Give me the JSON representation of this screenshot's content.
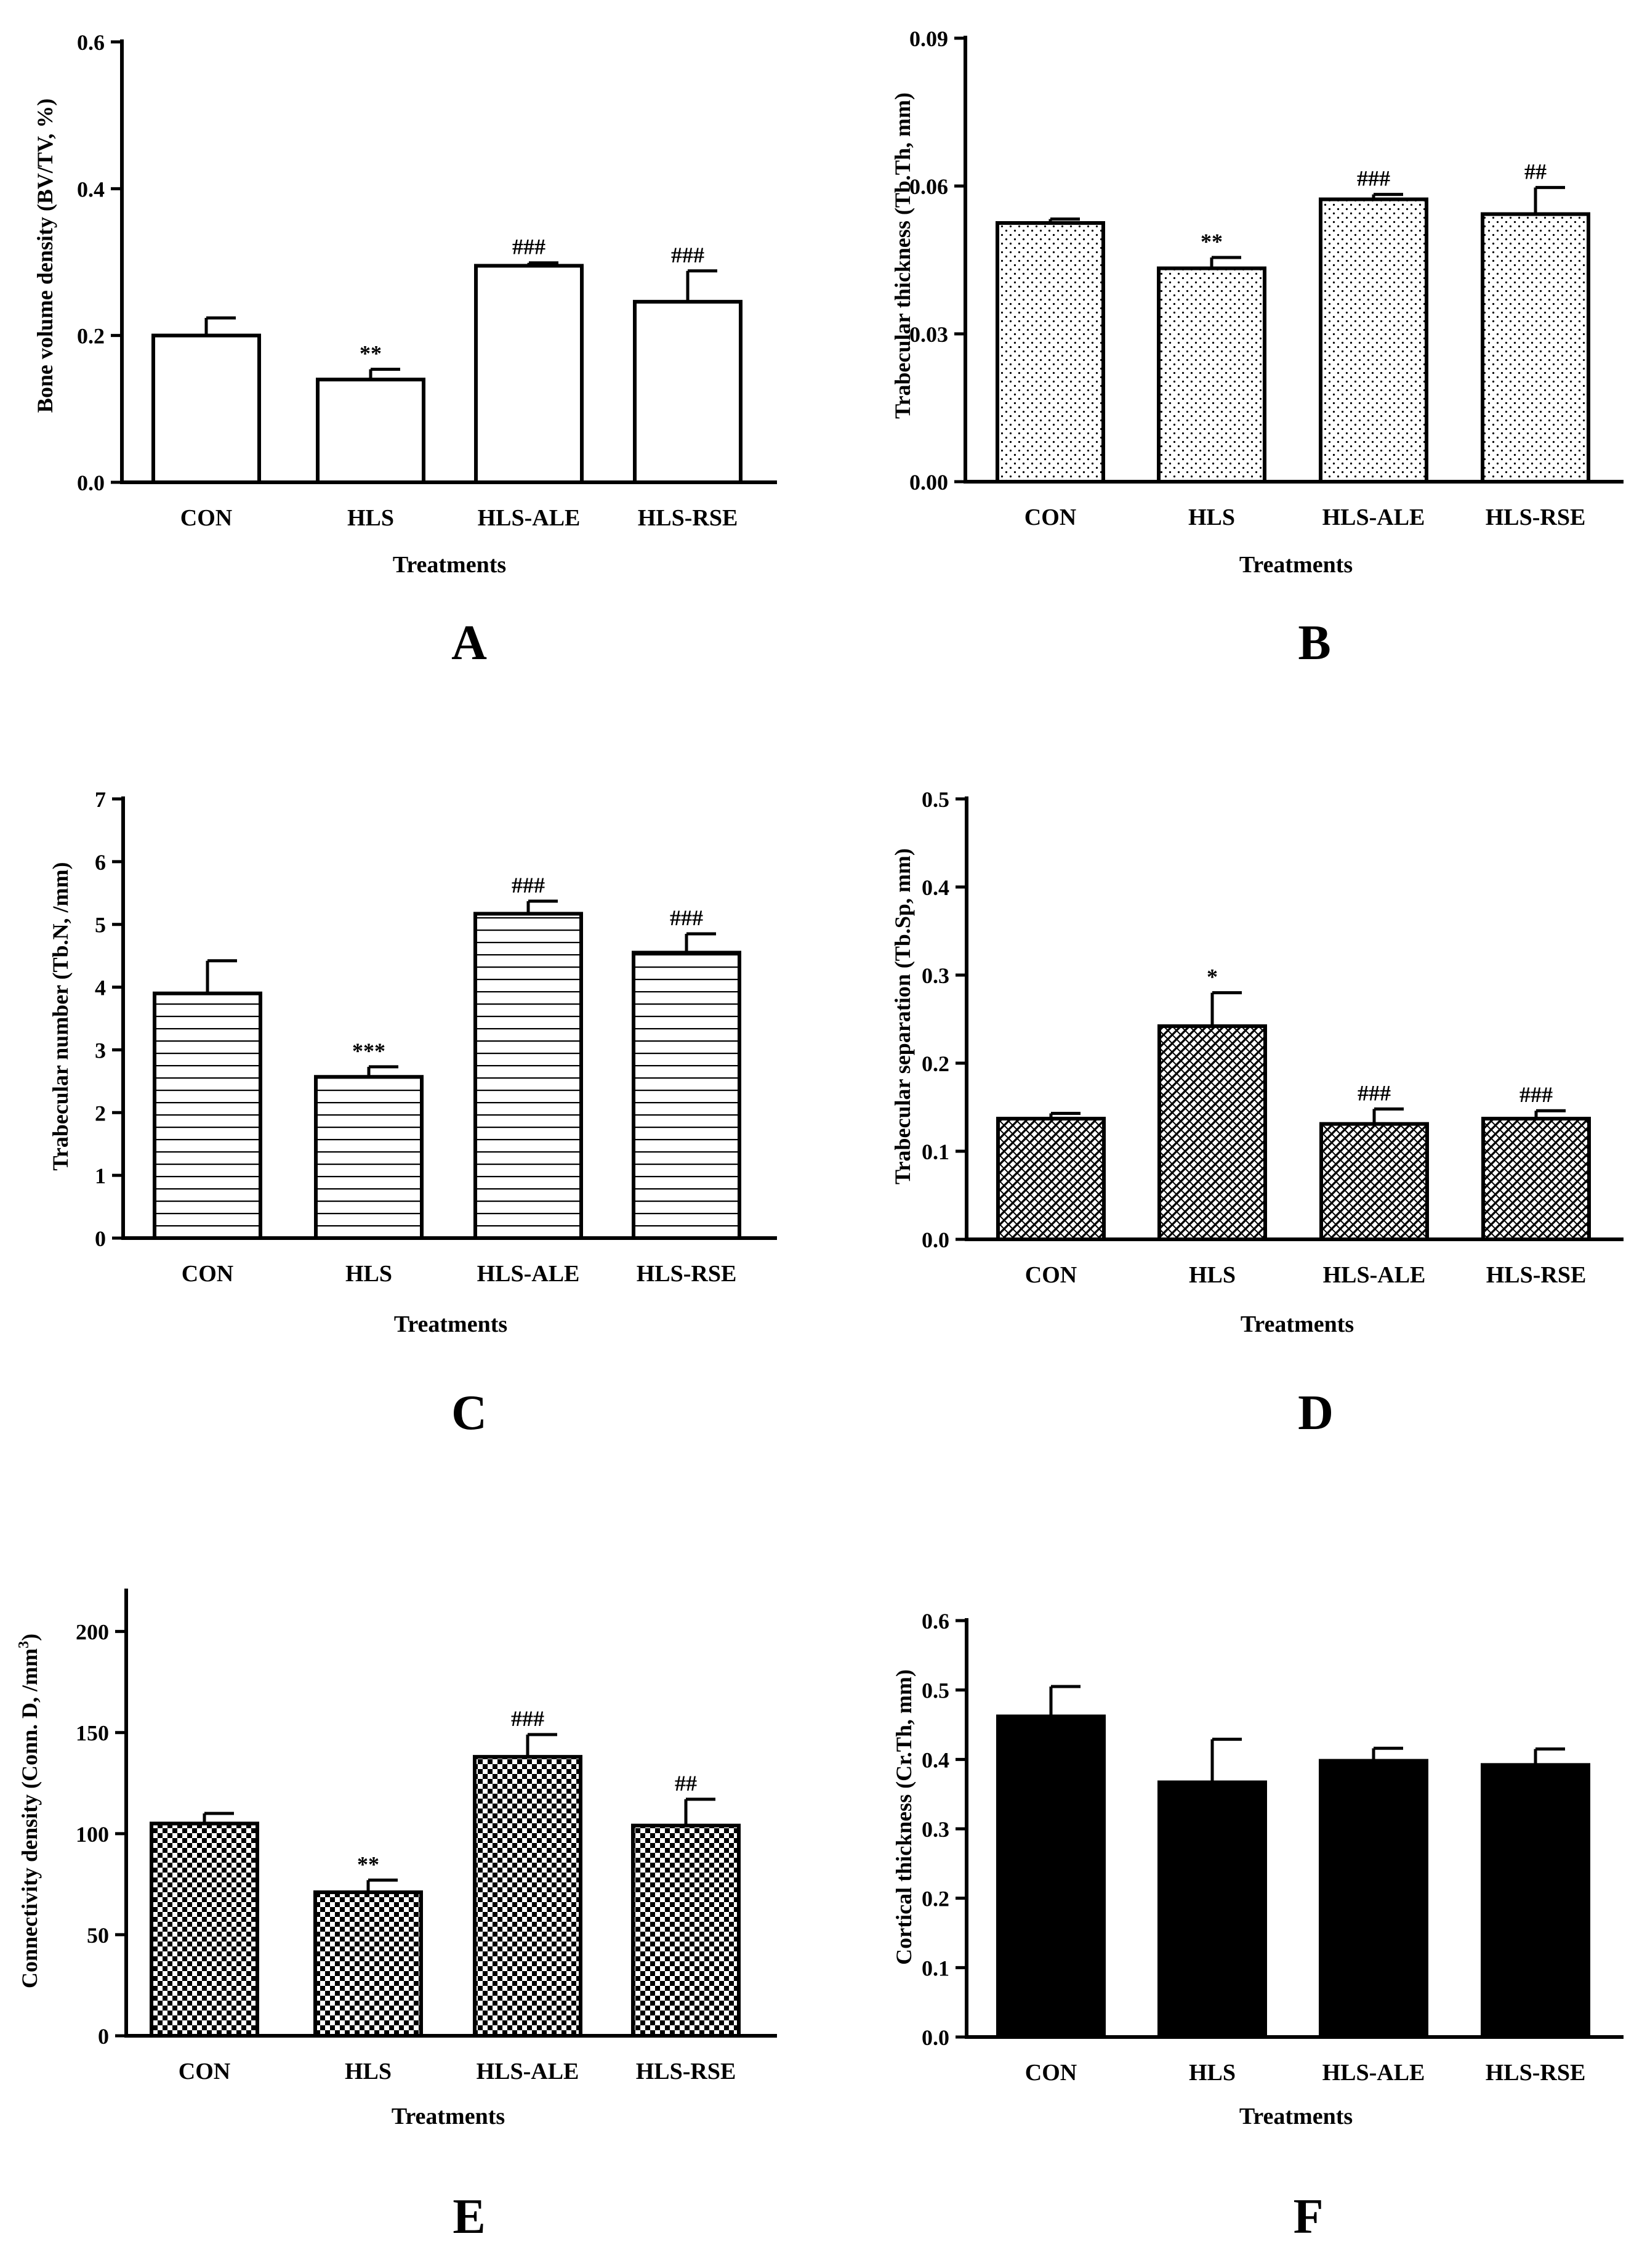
{
  "figure": {
    "panels": [
      {
        "panel_label": "A",
        "ylabel": "Bone volume density (BV/TV, %)",
        "xlabel": "Treatments",
        "ytick_labels": [
          "0.0",
          "0.2",
          "0.4",
          "0.6"
        ]
      },
      {
        "panel_label": "B",
        "ylabel": "Trabecular thickness (Tb.Th, mm)",
        "xlabel": "Treatments",
        "ytick_labels": [
          "0.00",
          "0.03",
          "0.06",
          "0.09"
        ]
      },
      {
        "panel_label": "C",
        "ylabel": "Trabecular number (Tb.N, /mm)",
        "xlabel": "Treatments",
        "ytick_labels": [
          "0",
          "1",
          "2",
          "3",
          "4",
          "5",
          "6",
          "7"
        ]
      },
      {
        "panel_label": "D",
        "ylabel": "Trabecular separation (Tb.Sp, mm)",
        "xlabel": "Treatments",
        "ytick_labels": [
          "0.0",
          "0.1",
          "0.2",
          "0.3",
          "0.4",
          "0.5"
        ]
      },
      {
        "panel_label": "E",
        "ylabel": "Connectivity density (Conn. D, /mm",
        "ylabel_superscript": "3",
        "ylabel_close": ")",
        "xlabel": "Treatments",
        "ytick_labels": [
          "0",
          "50",
          "100",
          "150",
          "200"
        ]
      },
      {
        "panel_label": "F",
        "ylabel": "Cortical thickness (Cr.Th, mm)",
        "xlabel": "Treatments",
        "ytick_labels": [
          "0.0",
          "0.1",
          "0.2",
          "0.3",
          "0.4",
          "0.5",
          "0.6"
        ]
      }
    ]
  },
  "chart_data": [
    {
      "type": "bar",
      "panel": "A",
      "fill": "white",
      "categories": [
        "CON",
        "HLS",
        "HLS-ALE",
        "HLS-RSE"
      ],
      "values": [
        0.2,
        0.14,
        0.295,
        0.246
      ],
      "errors": [
        0.024,
        0.014,
        0.004,
        0.042
      ],
      "annotations": [
        "",
        "**",
        "###",
        "###"
      ],
      "ylim": [
        0,
        0.6
      ],
      "yticks": [
        0,
        0.2,
        0.4,
        0.6
      ],
      "xlabel": "Treatments",
      "ylabel": "Bone volume density (BV/TV, %)"
    },
    {
      "type": "bar",
      "panel": "B",
      "fill": "dots",
      "categories": [
        "CON",
        "HLS",
        "HLS-ALE",
        "HLS-RSE"
      ],
      "values": [
        0.0525,
        0.0433,
        0.0573,
        0.0543
      ],
      "errors": [
        0.0008,
        0.0022,
        0.001,
        0.0054
      ],
      "annotations": [
        "",
        "**",
        "###",
        "##"
      ],
      "ylim": [
        0,
        0.09
      ],
      "yticks": [
        0,
        0.03,
        0.06,
        0.09
      ],
      "xlabel": "Treatments",
      "ylabel": "Trabecular thickness (Tb.Th, mm)"
    },
    {
      "type": "bar",
      "panel": "C",
      "fill": "horizontal-lines",
      "categories": [
        "CON",
        "HLS",
        "HLS-ALE",
        "HLS-RSE"
      ],
      "values": [
        3.9,
        2.57,
        5.17,
        4.55
      ],
      "errors": [
        0.52,
        0.16,
        0.2,
        0.3
      ],
      "annotations": [
        "",
        "***",
        "###",
        "###"
      ],
      "ylim": [
        0,
        7
      ],
      "yticks": [
        0,
        1,
        2,
        3,
        4,
        5,
        6,
        7
      ],
      "xlabel": "Treatments",
      "ylabel": "Trabecular number (Tb.N, /mm)"
    },
    {
      "type": "bar",
      "panel": "D",
      "fill": "crosshatch",
      "categories": [
        "CON",
        "HLS",
        "HLS-ALE",
        "HLS-RSE"
      ],
      "values": [
        0.137,
        0.242,
        0.131,
        0.137
      ],
      "errors": [
        0.006,
        0.038,
        0.017,
        0.009
      ],
      "annotations": [
        "",
        "*",
        "###",
        "###"
      ],
      "ylim": [
        0,
        0.5
      ],
      "yticks": [
        0,
        0.1,
        0.2,
        0.3,
        0.4,
        0.5
      ],
      "xlabel": "Treatments",
      "ylabel": "Trabecular separation (Tb.Sp, mm)"
    },
    {
      "type": "bar",
      "panel": "E",
      "fill": "checkerboard",
      "categories": [
        "CON",
        "HLS",
        "HLS-ALE",
        "HLS-RSE"
      ],
      "values": [
        105,
        71,
        138,
        104
      ],
      "errors": [
        5,
        6,
        11,
        13
      ],
      "annotations": [
        "",
        "**",
        "###",
        "##"
      ],
      "ylim": [
        0,
        220
      ],
      "yticks": [
        0,
        50,
        100,
        150,
        200
      ],
      "xlabel": "Treatments",
      "ylabel": "Connectivity density (Conn. D, /mm3)"
    },
    {
      "type": "bar",
      "panel": "F",
      "fill": "black",
      "categories": [
        "CON",
        "HLS",
        "HLS-ALE",
        "HLS-RSE"
      ],
      "values": [
        0.462,
        0.367,
        0.398,
        0.392
      ],
      "errors": [
        0.043,
        0.062,
        0.018,
        0.023
      ],
      "annotations": [
        "",
        "",
        "",
        ""
      ],
      "ylim": [
        0,
        0.6
      ],
      "yticks": [
        0,
        0.1,
        0.2,
        0.3,
        0.4,
        0.5,
        0.6
      ],
      "xlabel": "Treatments",
      "ylabel": "Cortical thickness (Cr.Th, mm)"
    }
  ]
}
